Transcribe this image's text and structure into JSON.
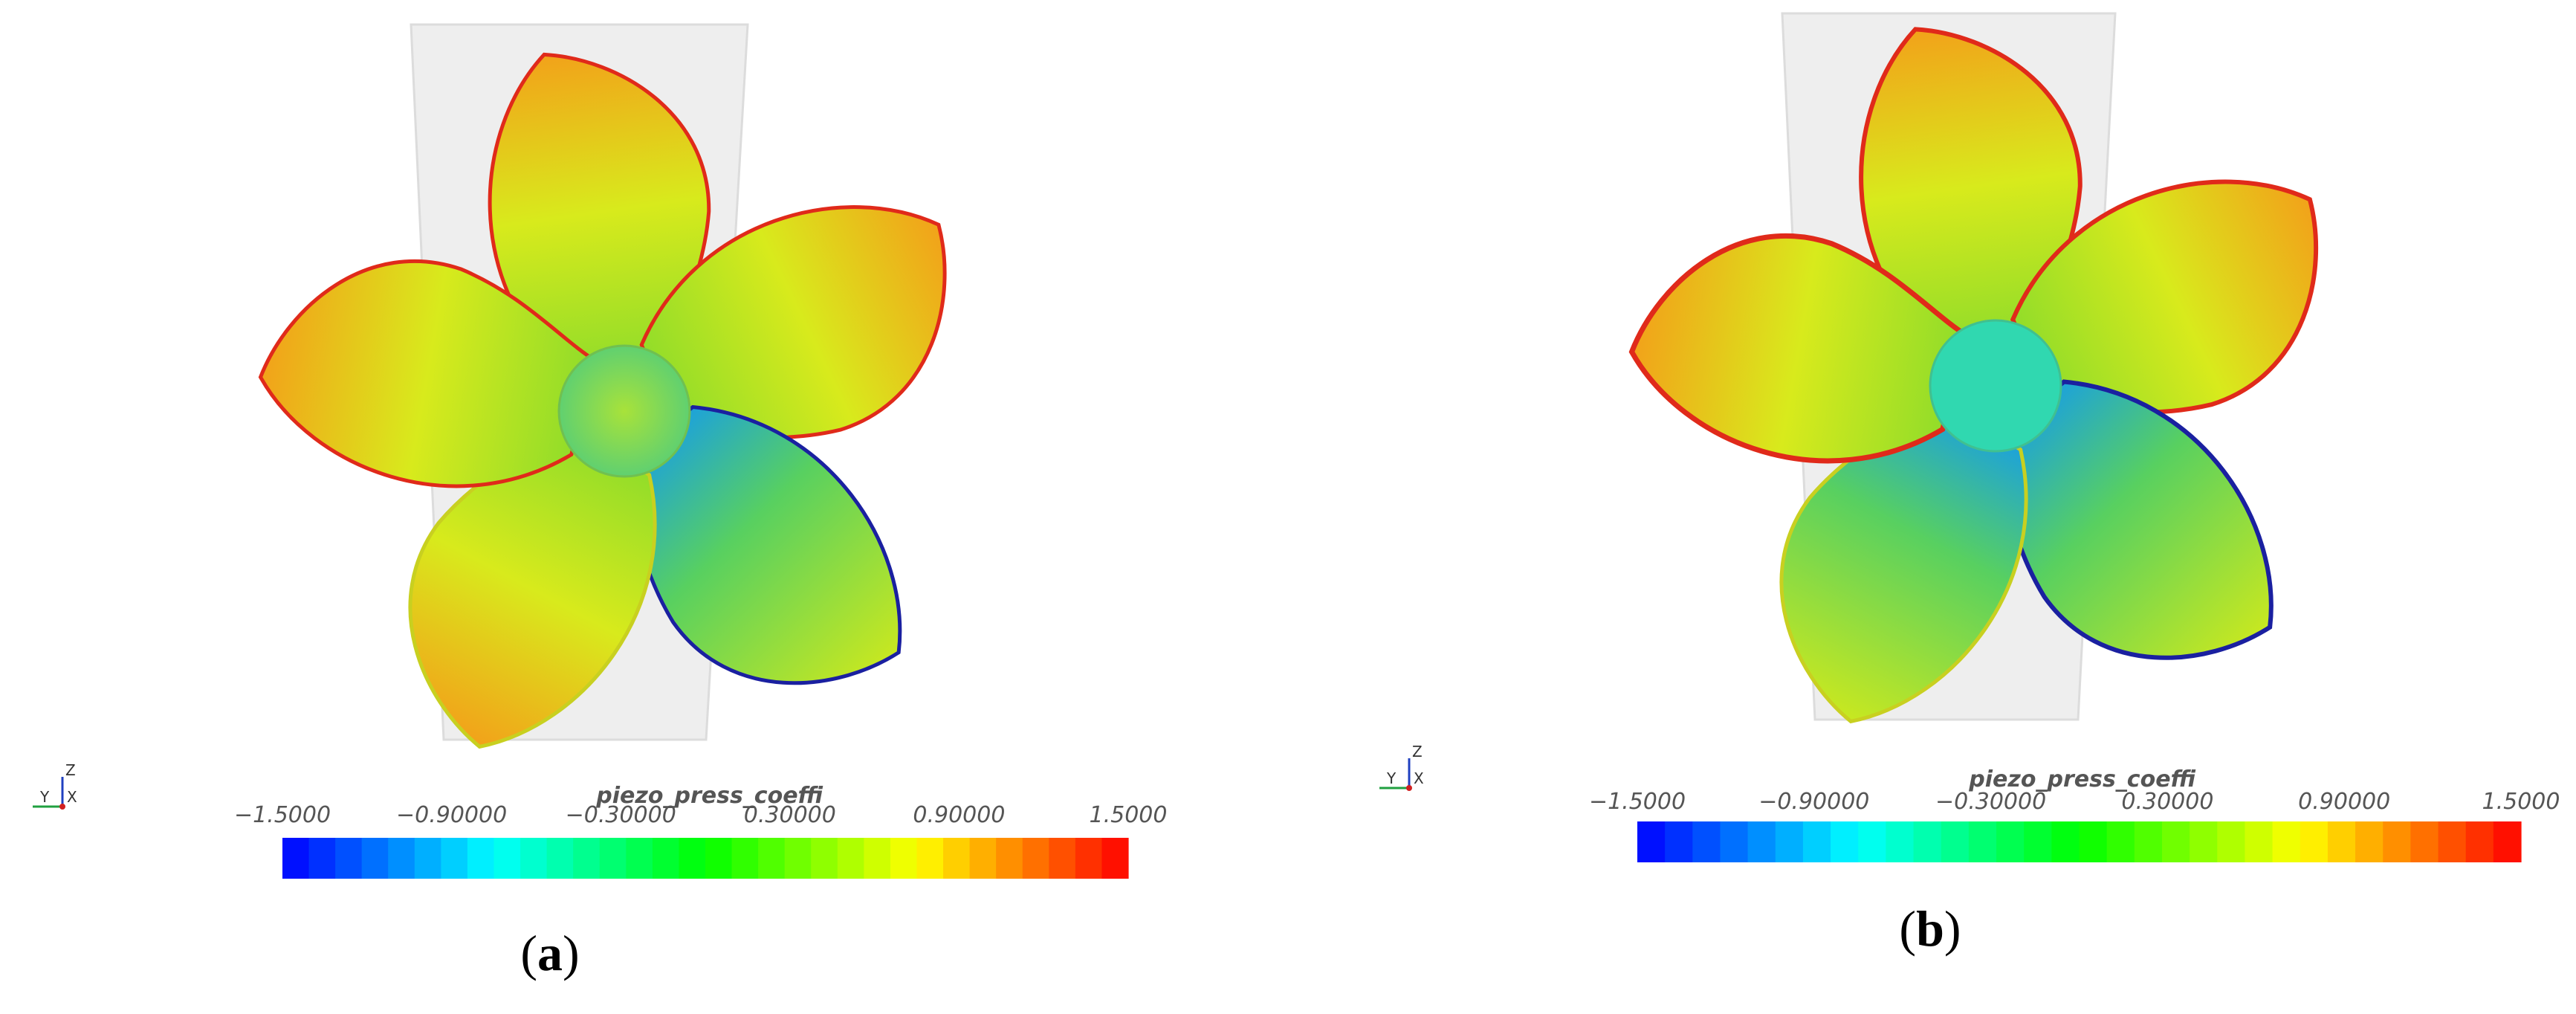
{
  "panels": [
    {
      "label_parts": [
        "(",
        "a",
        ")"
      ],
      "axes_labels": [
        "Z",
        "Y",
        "X"
      ],
      "colorbar": {
        "title": "piezo_press_coeffi",
        "lim": [
          -1.5,
          1.5
        ],
        "steps": 32,
        "colors": [
          "#0000ff",
          "#00ffff",
          "#00ff00",
          "#ffff00",
          "#ff0000"
        ],
        "ticks": [
          {
            "value": -1.5,
            "label": "−1.5000"
          },
          {
            "value": -0.9,
            "label": "−0.90000"
          },
          {
            "value": -0.3,
            "label": "−0.30000"
          },
          {
            "value": 0.3,
            "label": "0.30000"
          },
          {
            "value": 0.9,
            "label": "0.90000"
          },
          {
            "value": 1.5,
            "label": "1.5000"
          }
        ]
      }
    },
    {
      "label_parts": [
        "(",
        "b",
        ")"
      ],
      "axes_labels": [
        "Z",
        "Y",
        "X"
      ],
      "colorbar": {
        "title": "piezo_press_coeffi",
        "lim": [
          -1.5,
          1.5
        ],
        "steps": 32,
        "colors": [
          "#0000ff",
          "#00ffff",
          "#00ff00",
          "#ffff00",
          "#ff0000"
        ],
        "ticks": [
          {
            "value": -1.5,
            "label": "−1.5000"
          },
          {
            "value": -0.9,
            "label": "−0.90000"
          },
          {
            "value": -0.3,
            "label": "−0.30000"
          },
          {
            "value": 0.3,
            "label": "0.30000"
          },
          {
            "value": 0.9,
            "label": "0.90000"
          },
          {
            "value": 1.5,
            "label": "1.5000"
          }
        ]
      }
    }
  ]
}
